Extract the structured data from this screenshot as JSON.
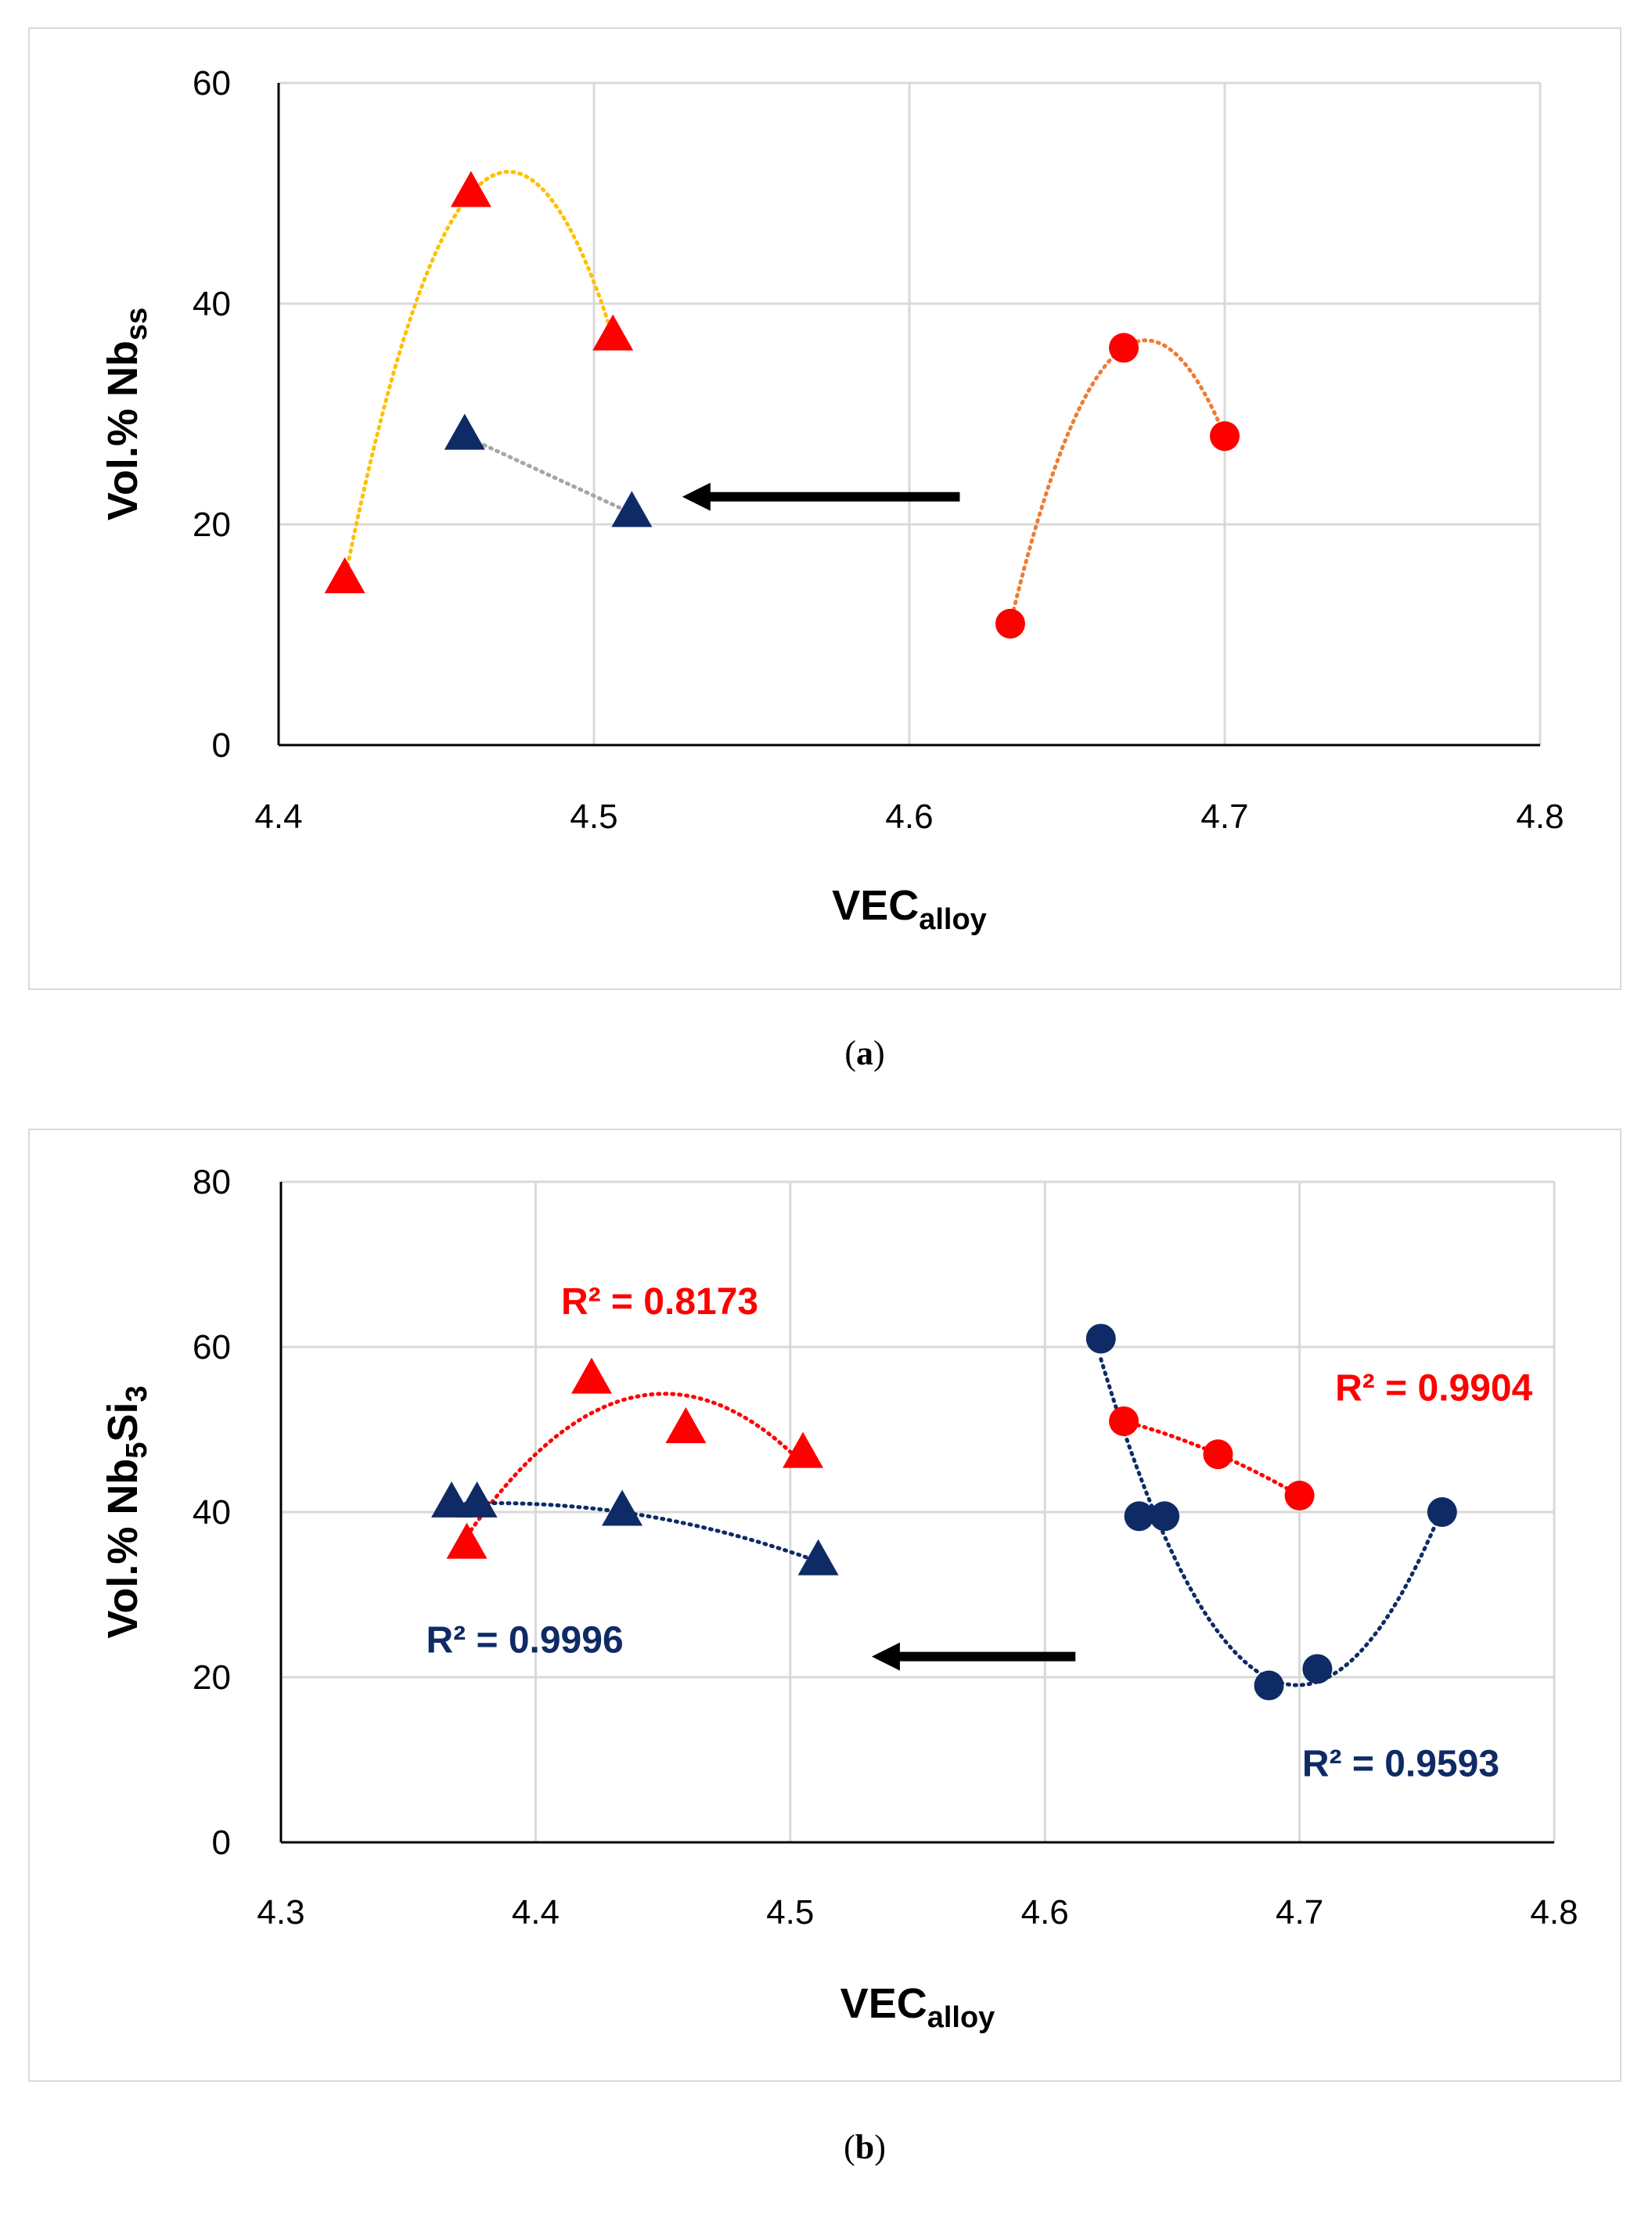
{
  "chart_data": [
    {
      "id": "a",
      "type": "scatter",
      "caption": "a",
      "xlabel_main": "VEC",
      "xlabel_sub": "alloy",
      "ylabel_main": "Vol.% Nb",
      "ylabel_sub": "ss",
      "xlim": [
        4.4,
        4.8
      ],
      "ylim": [
        0,
        60
      ],
      "xticks": [
        "4.4",
        "4.5",
        "4.6",
        "4.7",
        "4.8"
      ],
      "yticks": [
        "0",
        "20",
        "40",
        "60"
      ],
      "grid": true,
      "series": [
        {
          "name": "red-triangles",
          "marker": "triangle",
          "color": "#ff0000",
          "x": [
            4.421,
            4.461,
            4.506
          ],
          "y": [
            15,
            50,
            37
          ],
          "trend_color": "#ffc000",
          "trend": "poly"
        },
        {
          "name": "navy-triangles",
          "marker": "triangle",
          "color": "#0f2b66",
          "x": [
            4.459,
            4.512
          ],
          "y": [
            28,
            21
          ],
          "trend_color": "#a6a6a6",
          "trend": "linear"
        },
        {
          "name": "red-circles",
          "marker": "circle",
          "color": "#ff0000",
          "x": [
            4.632,
            4.668,
            4.7
          ],
          "y": [
            11,
            36,
            28
          ],
          "trend_color": "#ed7d31",
          "trend": "poly"
        }
      ],
      "annotations": [
        {
          "type": "arrow",
          "from": [
            4.616,
            22.5
          ],
          "to": [
            4.528,
            22.5
          ],
          "color": "#000000"
        }
      ]
    },
    {
      "id": "b",
      "type": "scatter",
      "caption": "b",
      "xlabel_main": "VEC",
      "xlabel_sub": "alloy",
      "ylabel_main": "Vol.% Nb",
      "ylabel_sub1": "5",
      "ylabel_mid": "Si",
      "ylabel_sub2": "3",
      "xlim": [
        4.3,
        4.8
      ],
      "ylim": [
        0,
        80
      ],
      "xticks": [
        "4.3",
        "4.4",
        "4.5",
        "4.6",
        "4.7",
        "4.8"
      ],
      "yticks": [
        "0",
        "20",
        "40",
        "60",
        "80"
      ],
      "grid": true,
      "series": [
        {
          "name": "red-triangles",
          "marker": "triangle",
          "color": "#ff0000",
          "x": [
            4.373,
            4.422,
            4.459,
            4.505
          ],
          "y": [
            36,
            56,
            50,
            47
          ],
          "trend_color": "#ff0000",
          "trend": "poly",
          "r2": "0.8173"
        },
        {
          "name": "navy-triangles",
          "marker": "triangle",
          "color": "#0f2b66",
          "x": [
            4.367,
            4.377,
            4.434,
            4.511
          ],
          "y": [
            41,
            41,
            40,
            34
          ],
          "trend_color": "#0f2b66",
          "trend": "poly",
          "r2": "0.9996"
        },
        {
          "name": "red-circles",
          "marker": "circle",
          "color": "#ff0000",
          "x": [
            4.631,
            4.668,
            4.7
          ],
          "y": [
            51,
            47,
            42
          ],
          "trend_color": "#ff0000",
          "trend": "poly",
          "r2": "0.9904"
        },
        {
          "name": "navy-circles",
          "marker": "circle",
          "color": "#0f2b66",
          "x": [
            4.622,
            4.637,
            4.647,
            4.688,
            4.707,
            4.756
          ],
          "y": [
            61,
            39.5,
            39.5,
            19,
            21,
            40
          ],
          "trend_color": "#0f2b66",
          "trend": "poly",
          "r2": "0.9593"
        }
      ],
      "r2_labels": [
        {
          "text": "R² = 0.8173",
          "color": "#ff0000",
          "at": [
            4.41,
            64
          ]
        },
        {
          "text": "R² = 0.9996",
          "color": "#0f2b66",
          "at": [
            4.357,
            23
          ]
        },
        {
          "text": "R² = 0.9904",
          "color": "#ff0000",
          "at": [
            4.714,
            53.5
          ]
        },
        {
          "text": "R² = 0.9593",
          "color": "#0f2b66",
          "at": [
            4.701,
            8
          ]
        }
      ],
      "annotations": [
        {
          "type": "arrow",
          "from": [
            4.612,
            22.5
          ],
          "to": [
            4.532,
            22.5
          ],
          "color": "#000000"
        }
      ]
    }
  ],
  "captions": {
    "a": "a",
    "b": "b"
  }
}
